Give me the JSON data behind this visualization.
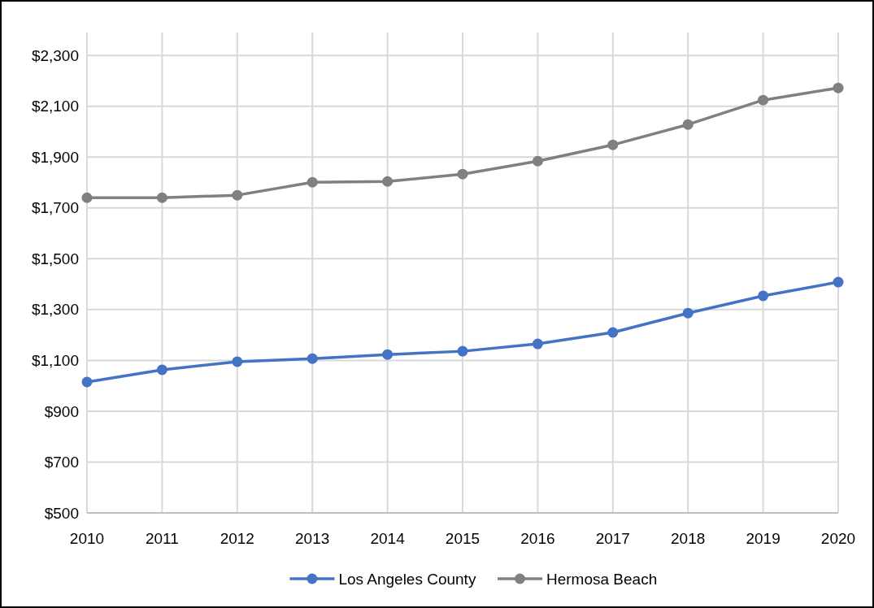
{
  "chart_data": {
    "type": "line",
    "categories": [
      "2010",
      "2011",
      "2012",
      "2013",
      "2014",
      "2015",
      "2016",
      "2017",
      "2018",
      "2019",
      "2020"
    ],
    "series": [
      {
        "name": "Los Angeles County",
        "color": "#4472c4",
        "values": [
          1015,
          1063,
          1095,
          1107,
          1123,
          1136,
          1165,
          1210,
          1286,
          1354,
          1408
        ]
      },
      {
        "name": "Hermosa Beach",
        "color": "#808080",
        "values": [
          1740,
          1740,
          1750,
          1801,
          1804,
          1833,
          1884,
          1948,
          2028,
          2124,
          2172
        ]
      }
    ],
    "ylim": [
      500,
      2390
    ],
    "yticks": [
      {
        "value": 500,
        "label": "$500"
      },
      {
        "value": 700,
        "label": "$700"
      },
      {
        "value": 900,
        "label": "$900"
      },
      {
        "value": 1100,
        "label": "$1,100"
      },
      {
        "value": 1300,
        "label": "$1,300"
      },
      {
        "value": 1500,
        "label": "$1,500"
      },
      {
        "value": 1700,
        "label": "$1,700"
      },
      {
        "value": 1900,
        "label": "$1,900"
      },
      {
        "value": 2100,
        "label": "$2,100"
      },
      {
        "value": 2300,
        "label": "$2,300"
      }
    ],
    "grid": true,
    "legend": "bottom",
    "marker": "circle",
    "line_style": "solid"
  }
}
